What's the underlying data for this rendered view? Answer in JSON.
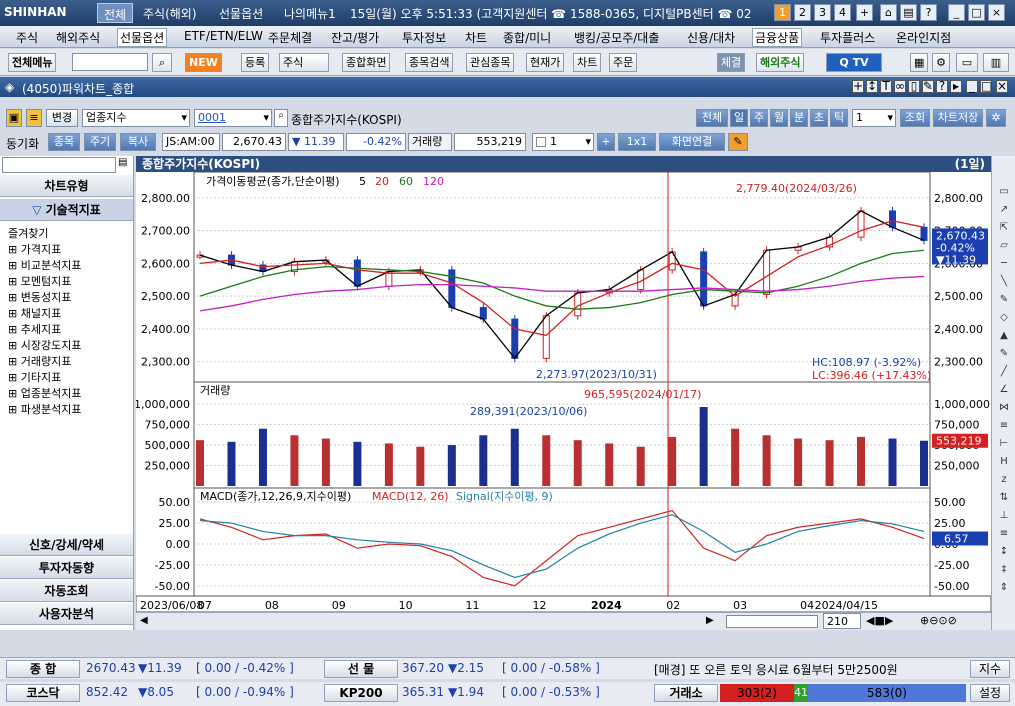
{
  "titlebar": {
    "logo": "SHINHAN",
    "tabs": [
      "전체",
      "주식(해외)",
      "선물옵션",
      "나의메뉴1"
    ],
    "info": "15일(월) 오후 5:51:33 (고객지원센터 ☎ 1588-0365, 디지털PB센터 ☎ 02",
    "workspaces": [
      "1",
      "2",
      "3",
      "4",
      "+"
    ]
  },
  "menubar": [
    "주식",
    "해외주식",
    "선물옵션",
    "ETF/ETN/ELW",
    "주문체결",
    "잔고/평가",
    "투자정보",
    "차트",
    "종합/미니",
    "뱅킹/공모주/대출",
    "신용/대차",
    "금융상품",
    "투자플러스",
    "온라인지점"
  ],
  "toolbar": {
    "all_menu": "전체메뉴",
    "new_badge": "NEW",
    "buttons": [
      "등록",
      "주식",
      "종합화면",
      "종목검색",
      "관심종목",
      "현재가",
      "차트",
      "주문"
    ],
    "right_buttons": [
      "체결",
      "해외주식"
    ]
  },
  "window": {
    "title": "(4050)파워차트_종합"
  },
  "controls1": {
    "change": "변경",
    "category": "업종지수",
    "code": "0001",
    "name": "종합주가지수(KOSPI)",
    "periods": [
      "전체",
      "일",
      "주",
      "월",
      "분",
      "초",
      "틱"
    ],
    "period_value": "1",
    "query": "조회",
    "save": "차트저장"
  },
  "controls2": {
    "sync": "동기화",
    "tabs": [
      "종목",
      "주기",
      "복사"
    ],
    "market": "JS:AM:00",
    "price": "2,670.43",
    "change": "▼ 11.39",
    "change_pct": "-0.42%",
    "volume_label": "거래량",
    "volume": "553,219",
    "count": "1",
    "ratio": "1x1",
    "screen_link": "화면연결"
  },
  "sidebar": {
    "chart_type": "차트유형",
    "technical": "기술적지표",
    "items": [
      "즐겨찾기",
      "가격지표",
      "비교분석지표",
      "모멘텀지표",
      "변동성지표",
      "채널지표",
      "추세지표",
      "시장강도지표",
      "거래량지표",
      "기타지표",
      "업종분석지표",
      "파생분석지표"
    ],
    "bottom": [
      "신호/강세/약세",
      "투자자동향",
      "자동조회",
      "사용자분석"
    ]
  },
  "chart_header": {
    "title": "종합주가지수(KOSPI)",
    "period": "(1일)"
  },
  "panels": {
    "price_title": "가격이동평균(종가,단순이평)",
    "ma_labels": [
      {
        "text": "5",
        "color": "#000000"
      },
      {
        "text": "20",
        "color": "#d42020"
      },
      {
        "text": "60",
        "color": "#1a7a1a"
      },
      {
        "text": "120",
        "color": "#c020c0"
      }
    ],
    "volume_title": "거래량",
    "macd_title": "MACD(종가,12,26,9,지수이평)",
    "macd_label": "MACD(12, 26)",
    "signal_label": "Signal(지수이평, 9)",
    "price_badge": [
      "2,670.43",
      "-0.42%",
      "▼11.39"
    ],
    "volume_badge": "553,219",
    "macd_badge": "6.57",
    "hc": "HC:108.97 (-3.92%)",
    "lc": "LC:396.46 (+17.43%)",
    "max_annotation": "2,779.40(2024/03/26)",
    "min_annotation": "2,273.97(2023/10/31)",
    "vol_annotation_1": "965,595(2024/01/17)",
    "vol_annotation_2": "289,391(2023/10/06)",
    "scroll_value": "210"
  },
  "chart_data": [
    {
      "type": "line",
      "title": "가격이동평균(종가,단순이평)",
      "x": [
        "2023/06/08",
        "2023/06/22",
        "2023/07/06",
        "2023/07/20",
        "2023/08/03",
        "2023/08/17",
        "2023/08/31",
        "2023/09/14",
        "2023/09/27",
        "2023/10/12",
        "2023/10/26",
        "2023/11/09",
        "2023/11/23",
        "2023/12/07",
        "2023/12/21",
        "2024/01/04",
        "2024/01/18",
        "2024/02/01",
        "2024/02/15",
        "2024/02/29",
        "2024/03/14",
        "2024/03/28",
        "2024/04/11",
        "2024/04/15"
      ],
      "ylim": [
        2250,
        2830
      ],
      "yticks": [
        2300,
        2400,
        2500,
        2600,
        2700,
        2800
      ],
      "series": [
        {
          "name": "5",
          "color": "#000000",
          "values": [
            2625,
            2595,
            2575,
            2605,
            2610,
            2530,
            2575,
            2580,
            2465,
            2430,
            2310,
            2440,
            2510,
            2520,
            2580,
            2635,
            2470,
            2505,
            2640,
            2650,
            2680,
            2760,
            2710,
            2670
          ]
        },
        {
          "name": "20",
          "color": "#d42020",
          "values": [
            2600,
            2610,
            2590,
            2595,
            2600,
            2580,
            2570,
            2570,
            2540,
            2480,
            2400,
            2380,
            2470,
            2510,
            2545,
            2600,
            2580,
            2500,
            2560,
            2620,
            2655,
            2700,
            2730,
            2710
          ]
        },
        {
          "name": "60",
          "color": "#1a7a1a",
          "values": [
            2500,
            2530,
            2560,
            2580,
            2590,
            2585,
            2580,
            2575,
            2560,
            2540,
            2500,
            2470,
            2460,
            2465,
            2480,
            2505,
            2520,
            2515,
            2510,
            2530,
            2560,
            2600,
            2630,
            2640
          ]
        },
        {
          "name": "120",
          "color": "#c020c0",
          "values": [
            2455,
            2470,
            2490,
            2505,
            2515,
            2520,
            2530,
            2535,
            2535,
            2530,
            2525,
            2515,
            2515,
            2515,
            2515,
            2520,
            2525,
            2520,
            2515,
            2520,
            2530,
            2545,
            2555,
            2560
          ]
        }
      ]
    },
    {
      "type": "bar",
      "title": "거래량",
      "ylim": [
        0,
        1100000
      ],
      "yticks": [
        250000,
        500000,
        750000,
        1000000
      ],
      "x": [
        "2023/06/08",
        "2023/06/22",
        "2023/07/06",
        "2023/07/20",
        "2023/08/03",
        "2023/08/17",
        "2023/08/31",
        "2023/09/14",
        "2023/09/27",
        "2023/10/12",
        "2023/10/26",
        "2023/11/09",
        "2023/11/23",
        "2023/12/07",
        "2023/12/21",
        "2024/01/04",
        "2024/01/18",
        "2024/02/01",
        "2024/02/15",
        "2024/02/29",
        "2024/03/14",
        "2024/03/28",
        "2024/04/11",
        "2024/04/15"
      ],
      "values": [
        560000,
        540000,
        700000,
        620000,
        580000,
        540000,
        520000,
        480000,
        500000,
        620000,
        700000,
        620000,
        560000,
        520000,
        480000,
        600000,
        965595,
        700000,
        620000,
        580000,
        560000,
        600000,
        580000,
        553219
      ]
    },
    {
      "type": "line",
      "title": "MACD(종가,12,26,9,지수이평)",
      "ylim": [
        -55,
        55
      ],
      "yticks": [
        -50,
        -25,
        0,
        25,
        50
      ],
      "x": [
        "2023/06/08",
        "2023/06/22",
        "2023/07/06",
        "2023/07/20",
        "2023/08/03",
        "2023/08/17",
        "2023/08/31",
        "2023/09/14",
        "2023/09/27",
        "2023/10/12",
        "2023/10/26",
        "2023/11/09",
        "2023/11/23",
        "2023/12/07",
        "2023/12/21",
        "2024/01/04",
        "2024/01/18",
        "2024/02/01",
        "2024/02/15",
        "2024/02/29",
        "2024/03/14",
        "2024/03/28",
        "2024/04/11",
        "2024/04/15"
      ],
      "series": [
        {
          "name": "MACD(12, 26)",
          "color": "#d42020",
          "values": [
            30,
            20,
            5,
            10,
            12,
            -5,
            0,
            -2,
            -15,
            -40,
            -50,
            -20,
            10,
            20,
            30,
            40,
            -5,
            -20,
            10,
            20,
            25,
            30,
            20,
            6.57
          ]
        },
        {
          "name": "Signal(지수이평, 9)",
          "color": "#2080a0",
          "values": [
            28,
            25,
            15,
            10,
            10,
            5,
            2,
            0,
            -8,
            -25,
            -40,
            -30,
            -5,
            12,
            25,
            35,
            15,
            -10,
            0,
            15,
            22,
            28,
            24,
            15
          ]
        }
      ]
    }
  ],
  "x_axis": [
    "2023/06/08",
    "07",
    "08",
    "09",
    "10",
    "11",
    "12",
    "2024",
    "02",
    "03",
    "04",
    "2024/04/15"
  ],
  "bottom": {
    "row1": {
      "label1": "종 합",
      "v1": "2670.43",
      "c1": "▼11.39",
      "p1": "[ 0.00  / -0.42% ]",
      "label2": "선 물",
      "v2": "367.20",
      "c2": "▼2.15",
      "p2": "[ 0.00  / -0.58% ]",
      "news": "[매경] 또 오른 토익 응시료 6월부터 5만2500원",
      "btn": "지수"
    },
    "row2": {
      "label1": "코스닥",
      "v1": "852.42",
      "c1": "▼8.05",
      "p1": "[ 0.00  / -0.94% ]",
      "label2": "KP200",
      "v2": "365.31",
      "c2": "▼1.94",
      "p2": "[ 0.00  / -0.53% ]",
      "exchange": "거래소",
      "up": "303(2)",
      "flat": "41",
      "down": "583(0)",
      "btn": "설정"
    }
  },
  "colors": {
    "up": "#d42020",
    "down": "#1a3fb0",
    "header": "#2d4f80"
  }
}
